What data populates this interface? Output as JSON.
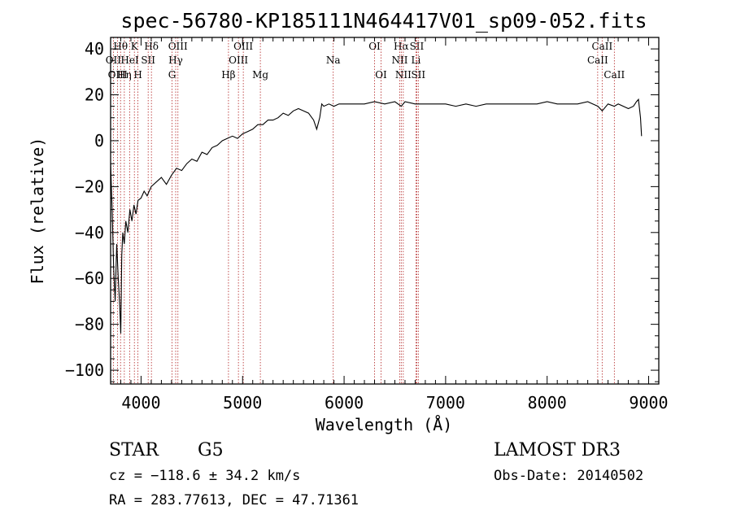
{
  "chart_data": {
    "type": "line",
    "title": "spec-56780-KP185111N464417V01_sp09-052.fits",
    "xlabel": "Wavelength (Å)",
    "ylabel": "Flux (relative)",
    "xlim": [
      3700,
      9100
    ],
    "ylim": [
      -106,
      45
    ],
    "xticks": [
      4000,
      5000,
      6000,
      7000,
      8000,
      9000
    ],
    "yticks": [
      -100,
      -80,
      -60,
      -40,
      -20,
      0,
      20,
      40
    ],
    "grid": false,
    "series": [
      {
        "name": "spectrum",
        "x": [
          3700,
          3715,
          3730,
          3745,
          3760,
          3775,
          3790,
          3800,
          3810,
          3820,
          3835,
          3850,
          3870,
          3890,
          3910,
          3930,
          3950,
          3970,
          4000,
          4030,
          4060,
          4100,
          4150,
          4200,
          4250,
          4300,
          4350,
          4400,
          4450,
          4500,
          4550,
          4600,
          4650,
          4700,
          4750,
          4800,
          4850,
          4900,
          4950,
          5000,
          5050,
          5100,
          5150,
          5200,
          5250,
          5300,
          5350,
          5400,
          5450,
          5500,
          5550,
          5600,
          5650,
          5700,
          5730,
          5760,
          5780,
          5800,
          5850,
          5900,
          5950,
          6000,
          6100,
          6200,
          6300,
          6400,
          6500,
          6563,
          6600,
          6700,
          6800,
          6900,
          7000,
          7100,
          7200,
          7300,
          7400,
          7500,
          7600,
          7700,
          7800,
          7900,
          8000,
          8100,
          8200,
          8300,
          8400,
          8500,
          8542,
          8600,
          8662,
          8700,
          8800,
          8850,
          8880,
          8900,
          8920,
          8930
        ],
        "values": [
          -10,
          -30,
          -55,
          -70,
          -45,
          -60,
          -72,
          -84,
          -50,
          -40,
          -45,
          -35,
          -40,
          -30,
          -35,
          -28,
          -32,
          -26,
          -25,
          -22,
          -24,
          -20,
          -18,
          -16,
          -19,
          -15,
          -12,
          -13,
          -10,
          -8,
          -9,
          -5,
          -6,
          -3,
          -2,
          0,
          1,
          2,
          1,
          3,
          4,
          5,
          7,
          7,
          9,
          9,
          10,
          12,
          11,
          13,
          14,
          13,
          12,
          9,
          5,
          10,
          16,
          15,
          16,
          15,
          16,
          16,
          16,
          16,
          17,
          16,
          17,
          15,
          17,
          16,
          16,
          16,
          16,
          15,
          16,
          15,
          16,
          16,
          16,
          16,
          16,
          16,
          17,
          16,
          16,
          16,
          17,
          15,
          13,
          16,
          15,
          16,
          14,
          15,
          17,
          18,
          10,
          2
        ]
      }
    ],
    "line_ids": [
      {
        "label": "OII",
        "wavelength": 3727,
        "row": 2
      },
      {
        "label": "Hθ",
        "wavelength": 3798,
        "row": 1
      },
      {
        "label": "OIII",
        "wavelength": 3769,
        "row": 3
      },
      {
        "label": "Hη",
        "wavelength": 3835,
        "row": 3
      },
      {
        "label": "K",
        "wavelength": 3934,
        "row": 1
      },
      {
        "label": "HeI",
        "wavelength": 3889,
        "row": 2
      },
      {
        "label": "H",
        "wavelength": 3969,
        "row": 3
      },
      {
        "label": "SII",
        "wavelength": 4070,
        "row": 2
      },
      {
        "label": "Hδ",
        "wavelength": 4102,
        "row": 1
      },
      {
        "label": "OIII",
        "wavelength": 4363,
        "row": 1
      },
      {
        "label": "Hγ",
        "wavelength": 4341,
        "row": 2
      },
      {
        "label": "G",
        "wavelength": 4305,
        "row": 3
      },
      {
        "label": "Hβ",
        "wavelength": 4861,
        "row": 3
      },
      {
        "label": "OIII",
        "wavelength": 5007,
        "row": 1
      },
      {
        "label": "OIII",
        "wavelength": 4959,
        "row": 2
      },
      {
        "label": "Mg",
        "wavelength": 5175,
        "row": 3
      },
      {
        "label": "Na",
        "wavelength": 5893,
        "row": 2
      },
      {
        "label": "OI",
        "wavelength": 6300,
        "row": 1
      },
      {
        "label": "OI",
        "wavelength": 6364,
        "row": 3
      },
      {
        "label": "Hα",
        "wavelength": 6563,
        "row": 1
      },
      {
        "label": "NII",
        "wavelength": 6548,
        "row": 2
      },
      {
        "label": "NII",
        "wavelength": 6583,
        "row": 3
      },
      {
        "label": "SII",
        "wavelength": 6716,
        "row": 1
      },
      {
        "label": "Li",
        "wavelength": 6708,
        "row": 2
      },
      {
        "label": "SII",
        "wavelength": 6731,
        "row": 3
      },
      {
        "label": "CaII",
        "wavelength": 8542,
        "row": 1
      },
      {
        "label": "CaII",
        "wavelength": 8498,
        "row": 2
      },
      {
        "label": "CaII",
        "wavelength": 8662,
        "row": 3
      }
    ]
  },
  "info": {
    "object_class": "STAR",
    "subclass": "G5",
    "survey": "LAMOST DR3",
    "cz": "cz = −118.6 ± 34.2 km/s",
    "obs_date": "Obs-Date: 20140502",
    "coords": "RA = 283.77613, DEC =  47.71361"
  }
}
